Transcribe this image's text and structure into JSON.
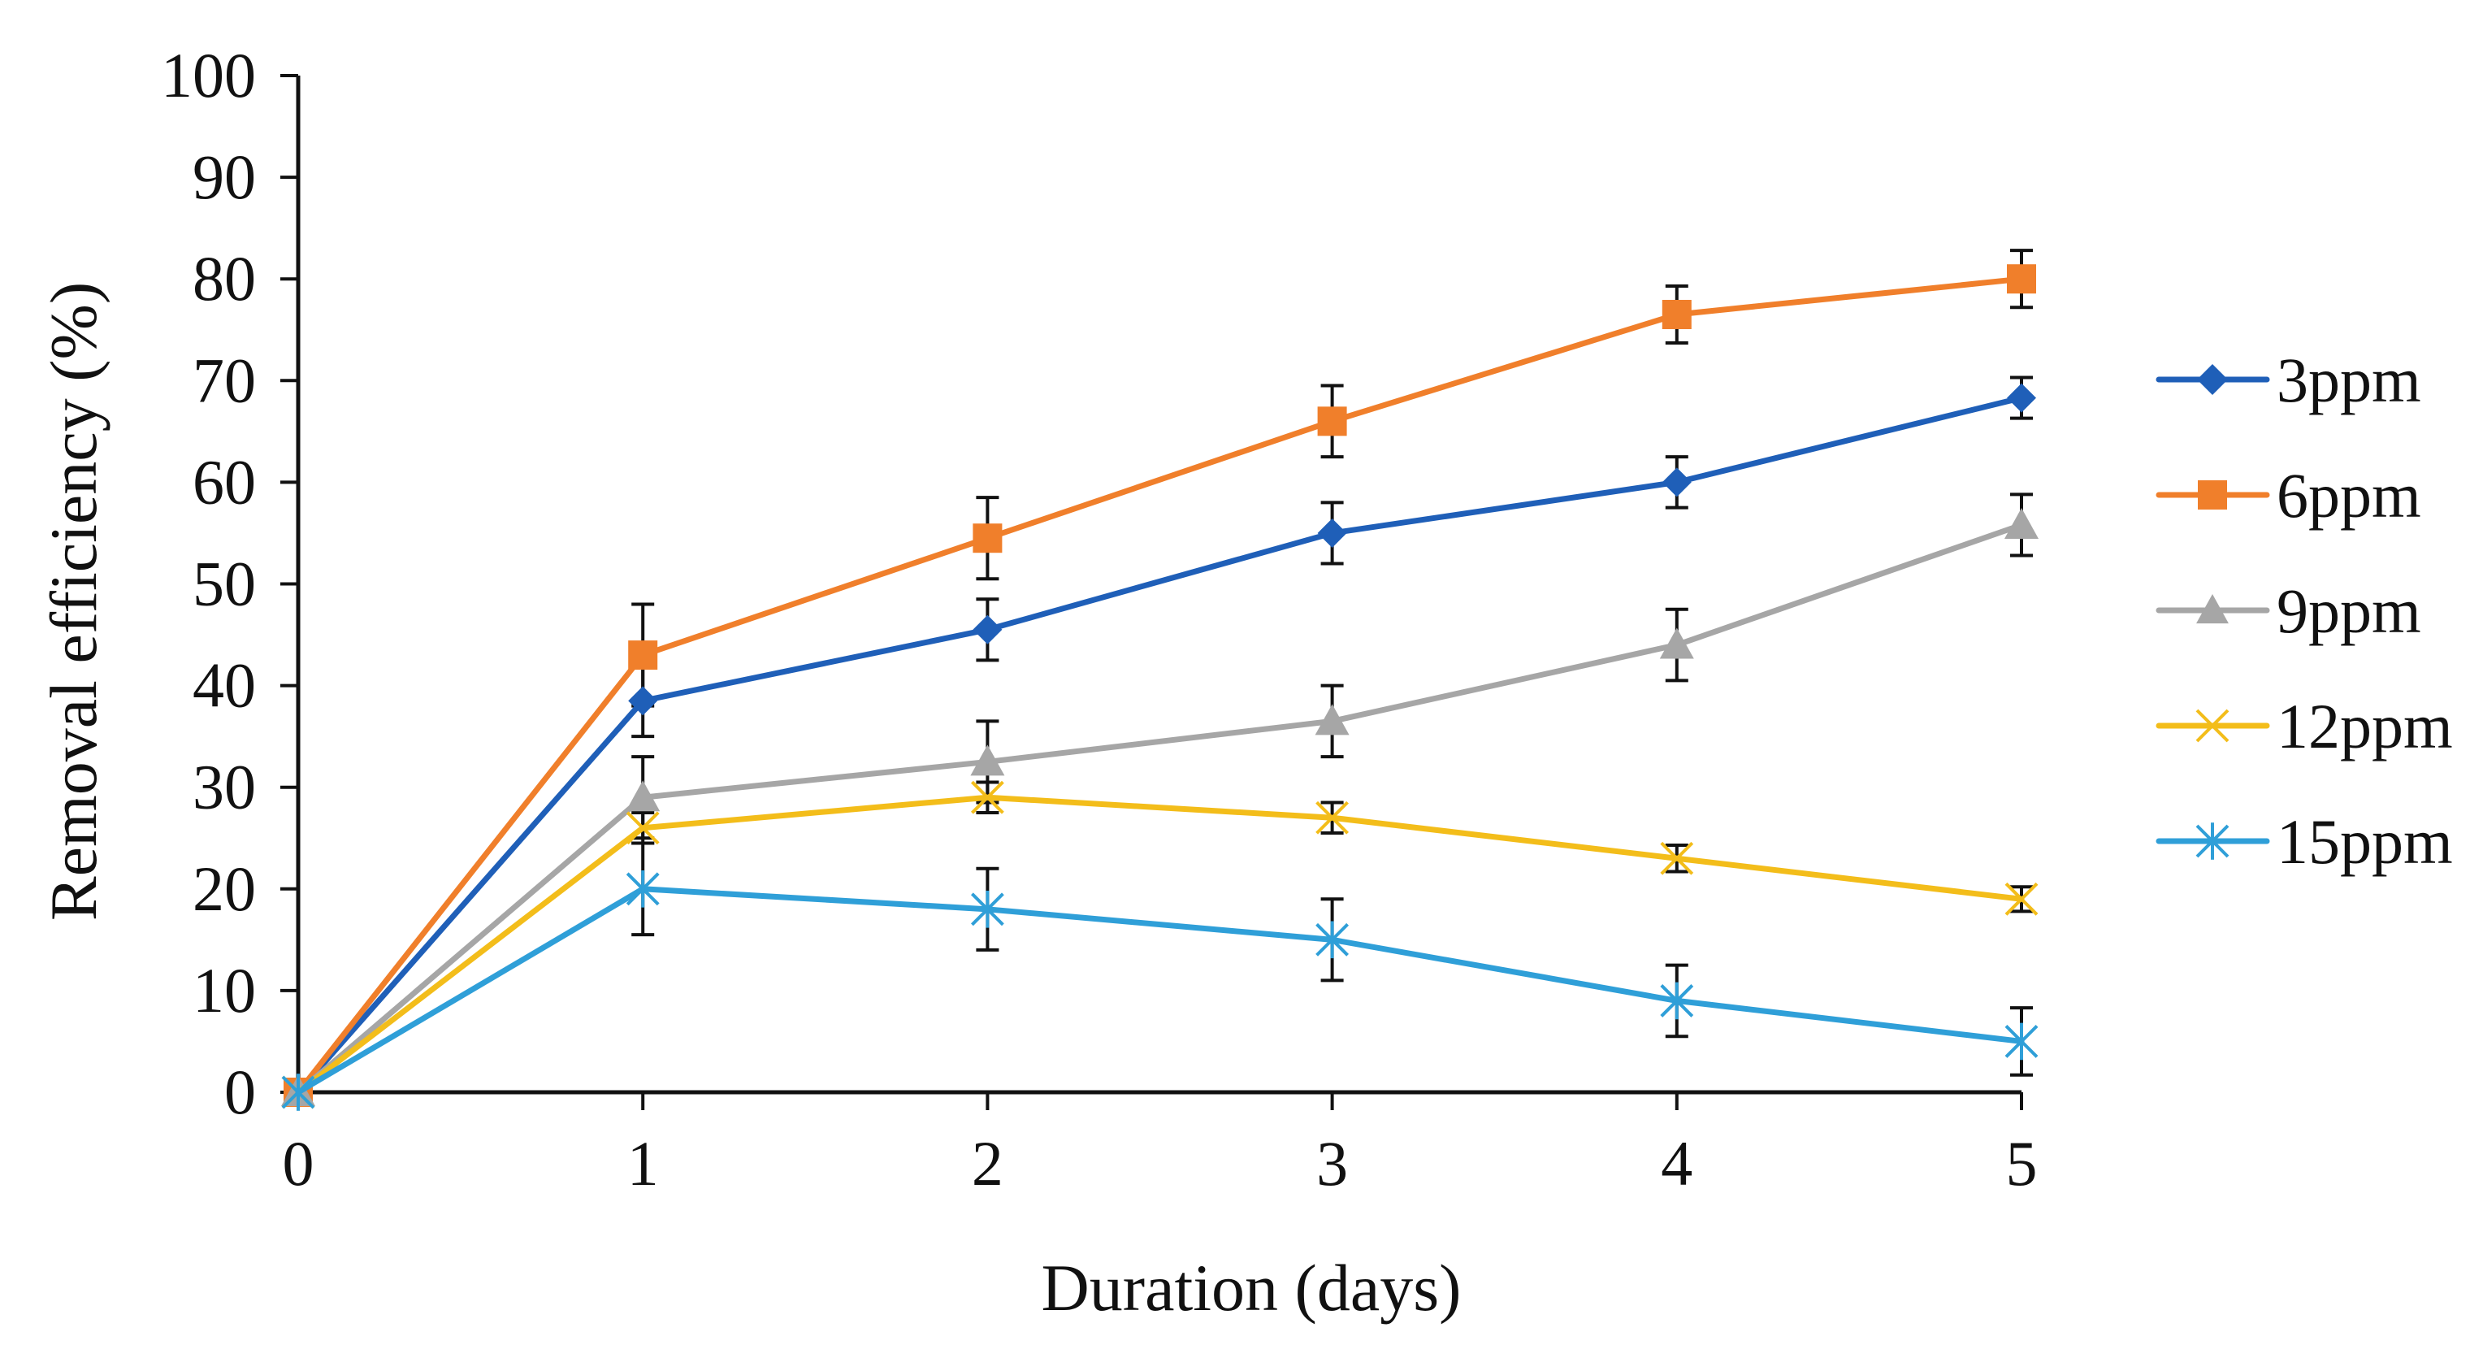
{
  "chart_data": {
    "type": "line",
    "title": "",
    "xlabel": "Duration (days)",
    "ylabel": "Removal efficiency (%)",
    "x": [
      0,
      1,
      2,
      3,
      4,
      5
    ],
    "x_ticks": [
      "0",
      "1",
      "2",
      "3",
      "4",
      "5"
    ],
    "y_ticks": [
      "0",
      "10",
      "20",
      "30",
      "40",
      "50",
      "60",
      "70",
      "80",
      "90",
      "100"
    ],
    "xlim": [
      0,
      5
    ],
    "ylim": [
      0,
      100
    ],
    "grid": false,
    "legend_position": "right",
    "series": [
      {
        "name": "3ppm",
        "color": "#1f5fb8",
        "marker": "diamond",
        "values": [
          0,
          38.5,
          45.5,
          55,
          60,
          68.3
        ],
        "errors": [
          0,
          3.5,
          3,
          3,
          2.5,
          2
        ]
      },
      {
        "name": "6ppm",
        "color": "#f07f2b",
        "marker": "square",
        "values": [
          0,
          43,
          54.5,
          66,
          76.5,
          80
        ],
        "errors": [
          0,
          5,
          4,
          3.5,
          2.8,
          2.8
        ]
      },
      {
        "name": "9ppm",
        "color": "#a6a6a6",
        "marker": "triangle",
        "values": [
          0,
          29,
          32.5,
          36.5,
          44,
          55.8
        ],
        "errors": [
          0,
          4,
          4,
          3.5,
          3.5,
          3
        ]
      },
      {
        "name": "12ppm",
        "color": "#f3bd1a",
        "marker": "x",
        "values": [
          0,
          26,
          29,
          27,
          23,
          19
        ],
        "errors": [
          0,
          1.5,
          1.5,
          1.5,
          1.3,
          1.2
        ]
      },
      {
        "name": "15ppm",
        "color": "#2f9fd8",
        "marker": "asterisk",
        "values": [
          0,
          20,
          18,
          15,
          9,
          5
        ],
        "errors": [
          0,
          4.5,
          4,
          4,
          3.5,
          3.3
        ]
      }
    ]
  }
}
